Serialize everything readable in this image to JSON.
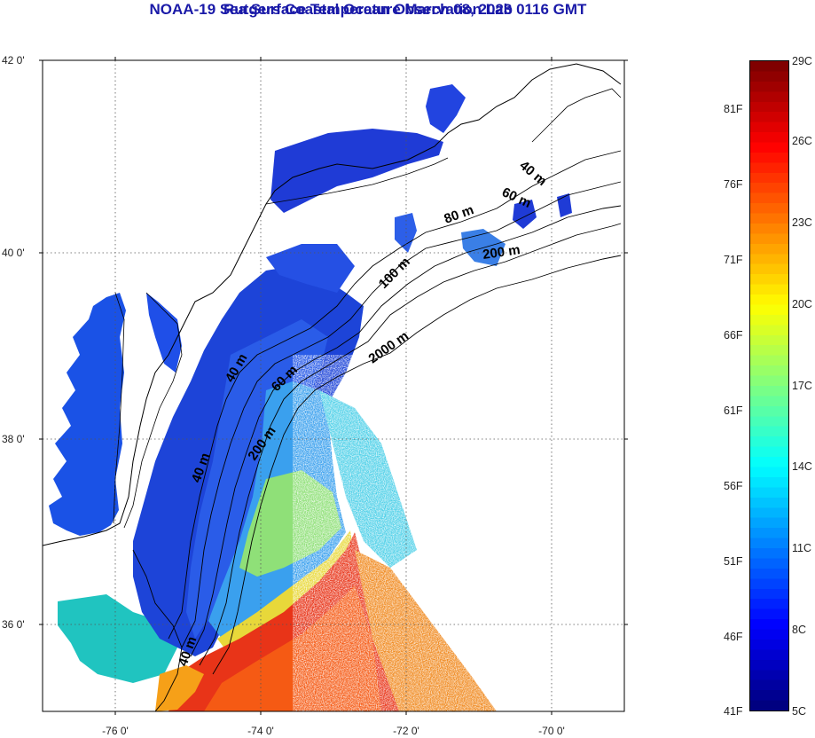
{
  "title": "NOAA-19 Sea Surface Temperature March 08, 2023 0116 GMT",
  "subtitle": "Rutgers Coastal Ocean Observation Lab",
  "map": {
    "lat_ticks": [
      {
        "value": 42,
        "label": "42 0'"
      },
      {
        "value": 40,
        "label": "40 0'"
      },
      {
        "value": 38,
        "label": "38 0'"
      },
      {
        "value": 36,
        "label": "36 0'"
      }
    ],
    "lon_ticks": [
      {
        "value": -76,
        "label": "-76 0'"
      },
      {
        "value": -74,
        "label": "-74 0'"
      },
      {
        "value": -72,
        "label": "-72 0'"
      },
      {
        "value": -70,
        "label": "-70 0'"
      }
    ],
    "lat_range": [
      35,
      42
    ],
    "lon_range": [
      -77,
      -69
    ],
    "grid": "dotted",
    "contour_labels": [
      "40 m",
      "60 m",
      "80 m",
      "100 m",
      "200 m",
      "2000 m",
      "40 m",
      "60 m",
      "200 m",
      "40 m",
      "40 m"
    ]
  },
  "colorbar": {
    "colormap": "jet",
    "min_c": 5,
    "max_c": 29,
    "celsius_labels": [
      "29C",
      "26C",
      "23C",
      "20C",
      "17C",
      "14C",
      "11C",
      "8C",
      "5C"
    ],
    "fahrenheit_labels": [
      "81F",
      "76F",
      "71F",
      "66F",
      "61F",
      "56F",
      "51F",
      "46F",
      "41F"
    ]
  }
}
